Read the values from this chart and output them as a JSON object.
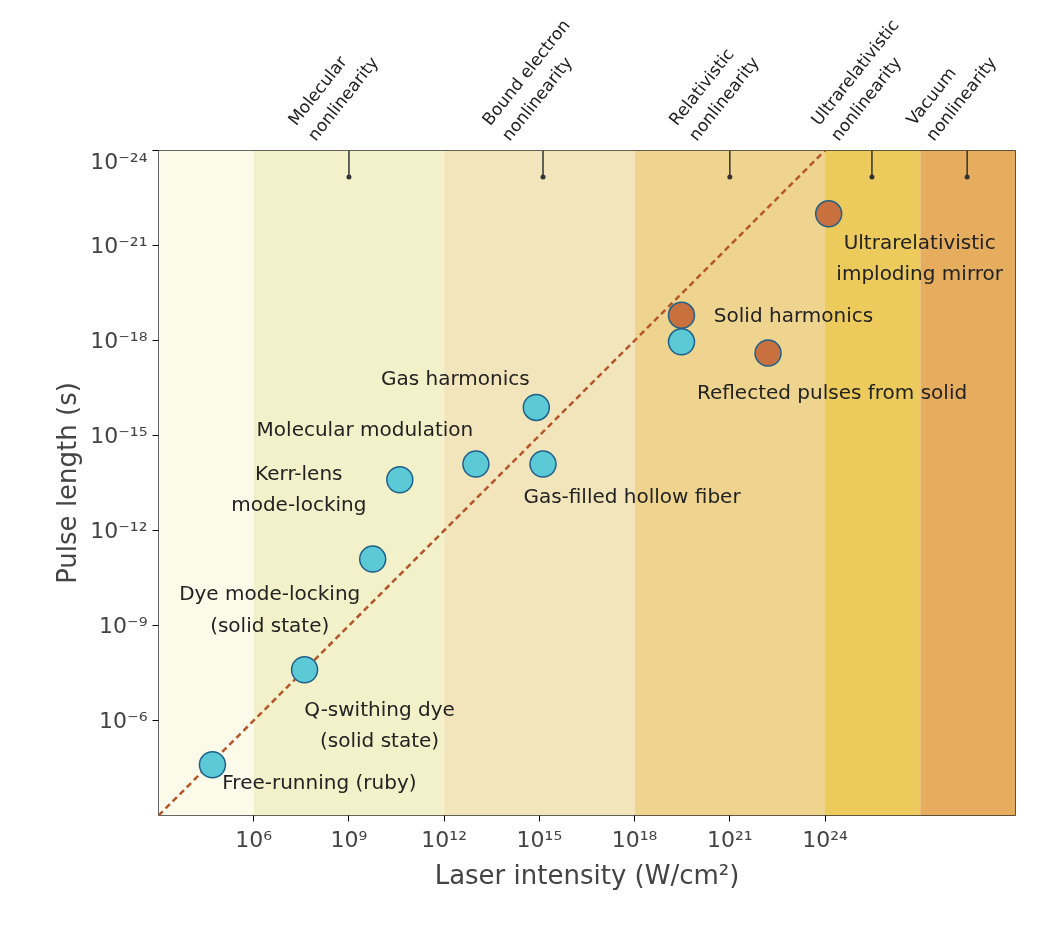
{
  "chart_data": {
    "type": "scatter",
    "xlabel": "Laser intensity (W/cm²)",
    "ylabel": "Pulse length (s)",
    "log": "xy",
    "xlim": [
      1000.0,
      1e+30
    ],
    "ylim": [
      0.001,
      1e-24
    ],
    "xticks": [
      {
        "value": 1000000.0,
        "label": "10⁶"
      },
      {
        "value": 1000000000.0,
        "label": "10⁹"
      },
      {
        "value": 1000000000000.0,
        "label": "10¹²"
      },
      {
        "value": 1000000000000000.0,
        "label": "10¹⁵"
      },
      {
        "value": 1e+18,
        "label": "10¹⁸"
      },
      {
        "value": 1e+21,
        "label": "10²¹"
      },
      {
        "value": 1e+24,
        "label": "10²⁴"
      }
    ],
    "yticks": [
      {
        "value": 1e-24,
        "label": "10⁻²⁴"
      },
      {
        "value": 1e-21,
        "label": "10⁻²¹"
      },
      {
        "value": 1e-18,
        "label": "10⁻¹⁸"
      },
      {
        "value": 1e-15,
        "label": "10⁻¹⁵"
      },
      {
        "value": 1e-12,
        "label": "10⁻¹²"
      },
      {
        "value": 1e-09,
        "label": "10⁻⁹"
      },
      {
        "value": 1e-06,
        "label": "10⁻⁶"
      }
    ],
    "grid": false,
    "marker": "circle",
    "ref_lines": [
      {
        "axis": "x",
        "value": 1000000000.0,
        "label": "Molecular\nnonlinearity",
        "color": "#333333"
      },
      {
        "axis": "x",
        "value": 1300000000000000.0,
        "label": "Bound electron\nnonlinearity",
        "color": "#333333"
      },
      {
        "axis": "x",
        "value": 1e+21,
        "label": "Relativistic\nnonlinearity",
        "color": "#333333"
      },
      {
        "axis": "x",
        "value": 3e+25,
        "label": "Ultrarelativistic\nnonlinearity",
        "color": "#333333"
      },
      {
        "axis": "x",
        "value": 3e+28,
        "label": "Vacuum\nnonlinearity",
        "color": "#333333"
      }
    ],
    "bands": [
      {
        "axis": "x",
        "from": 1000.0,
        "to": 1000000.0,
        "color": "#fcfbea"
      },
      {
        "axis": "x",
        "from": 1000000.0,
        "to": 1000000000000.0,
        "color": "#f3f1c9"
      },
      {
        "axis": "x",
        "from": 1000000000000.0,
        "to": 1e+18,
        "color": "#f3e5bb"
      },
      {
        "axis": "x",
        "from": 1e+18,
        "to": 1e+24,
        "color": "#eed48e"
      },
      {
        "axis": "x",
        "from": 1e+24,
        "to": 1e+27,
        "color": "#ecca5c"
      },
      {
        "axis": "x",
        "from": 1e+27,
        "to": 1e+30,
        "color": "#e6ad5e"
      }
    ],
    "series": [
      {
        "type": "line",
        "color": "#b5562a",
        "line_style": "dashed",
        "marker": "none",
        "x": [
          1000.0,
          1e+24
        ],
        "values": [
          0.001,
          1e-24
        ]
      },
      {
        "color": "#5cc9d6",
        "x": [
          50000.0,
          40000000.0,
          5600000000.0,
          40000000000.0,
          10000000000000.0,
          800000000000000.0,
          1300000000000000.0,
          3e+19
        ],
        "values": [
          2.5e-05,
          2.5e-08,
          8e-12,
          2.5e-14,
          8e-15,
          1.3e-16,
          8e-15,
          1.1e-18
        ]
      },
      {
        "color": "#c9703f",
        "x": [
          3e+19,
          1.6e+22,
          1.3e+24
        ],
        "values": [
          1.6e-19,
          2.5e-18,
          1e-22
        ]
      }
    ],
    "annotations": [
      {
        "text": "Free-running (ruby)",
        "x": 50000.0,
        "y": 2.5e-05
      },
      {
        "text": "Q-swithing dye\n(solid state)",
        "x": 40000000.0,
        "y": 2.5e-08
      },
      {
        "text": "Dye mode-locking\n(solid state)",
        "x": 5600000000.0,
        "y": 8e-12
      },
      {
        "text": "Kerr-lens\nmode-locking",
        "x": 40000000000.0,
        "y": 2.5e-14
      },
      {
        "text": "Molecular modulation",
        "x": 10000000000000.0,
        "y": 8e-15
      },
      {
        "text": "Gas harmonics",
        "x": 800000000000000.0,
        "y": 1.3e-16
      },
      {
        "text": "Gas-filled hollow fiber",
        "x": 1300000000000000.0,
        "y": 8e-15
      },
      {
        "text": "Solid harmonics",
        "x": 3e+19,
        "y": 1.6e-19
      },
      {
        "text": "Reflected pulses from solid",
        "x": 1.6e+22,
        "y": 2.5e-18
      },
      {
        "text": "Ultrarelativistic\nimploding mirror",
        "x": 1.3e+24,
        "y": 1e-22
      }
    ]
  }
}
